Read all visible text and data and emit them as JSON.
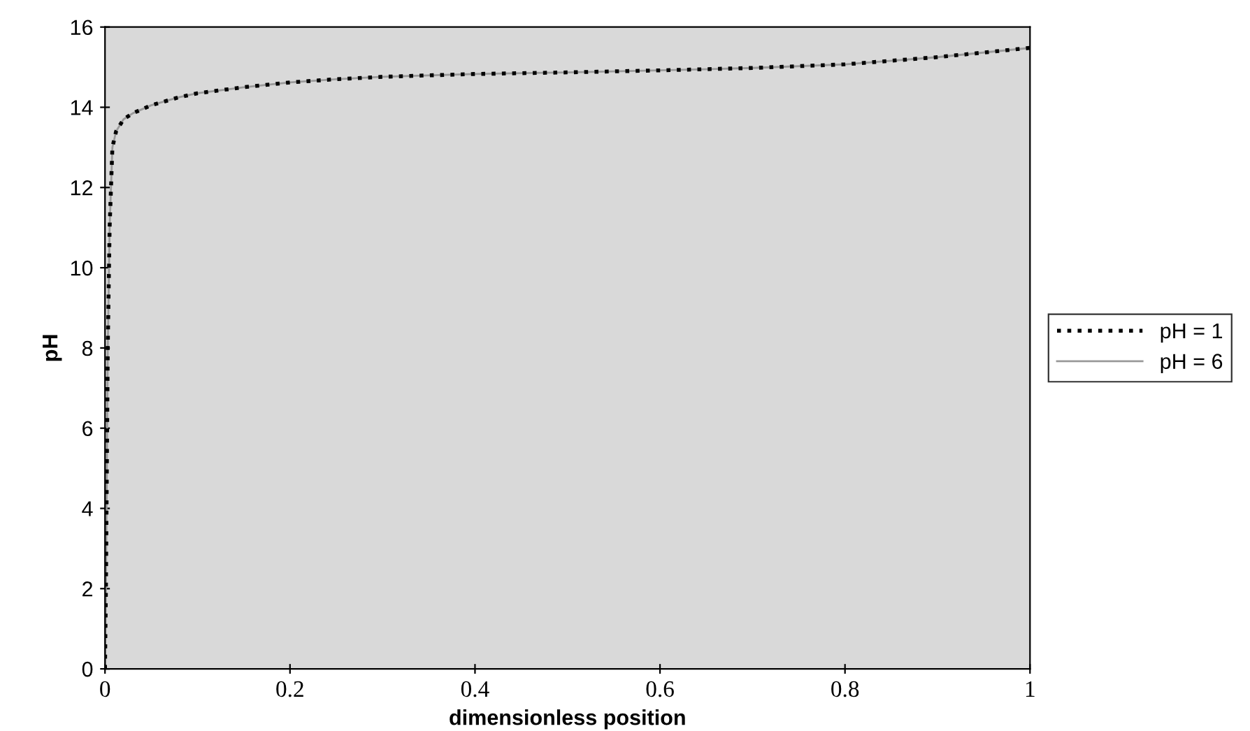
{
  "chart_data": {
    "type": "line",
    "xlabel": "dimensionless position",
    "ylabel": "pH",
    "xlim": [
      0,
      1
    ],
    "xticks": [
      0,
      0.2,
      0.4,
      0.6,
      0.8,
      1
    ],
    "ylim": [
      0,
      16
    ],
    "yticks": [
      0,
      2,
      4,
      6,
      8,
      10,
      12,
      14,
      16
    ],
    "grid": false,
    "legend": "right",
    "marker": "none",
    "x": [
      0,
      0.001,
      0.002,
      0.003,
      0.005,
      0.008,
      0.012,
      0.02,
      0.03,
      0.05,
      0.08,
      0.1,
      0.15,
      0.2,
      0.25,
      0.3,
      0.4,
      0.5,
      0.6,
      0.7,
      0.8,
      0.9,
      1.0
    ],
    "series": [
      {
        "name": "pH = 6",
        "color": "#9a9a9a",
        "line_style": "solid",
        "values": [
          0,
          2,
          5,
          8,
          11,
          13,
          13.4,
          13.7,
          13.85,
          14.05,
          14.25,
          14.35,
          14.5,
          14.62,
          14.7,
          14.76,
          14.83,
          14.87,
          14.92,
          14.98,
          15.07,
          15.25,
          15.48
        ]
      },
      {
        "name": "pH = 1",
        "color": "#000000",
        "line_style": "dotted",
        "values": [
          0,
          2,
          5,
          8,
          11,
          13,
          13.4,
          13.7,
          13.85,
          14.05,
          14.25,
          14.35,
          14.5,
          14.62,
          14.7,
          14.76,
          14.83,
          14.87,
          14.92,
          14.98,
          15.07,
          15.25,
          15.48
        ]
      }
    ]
  }
}
